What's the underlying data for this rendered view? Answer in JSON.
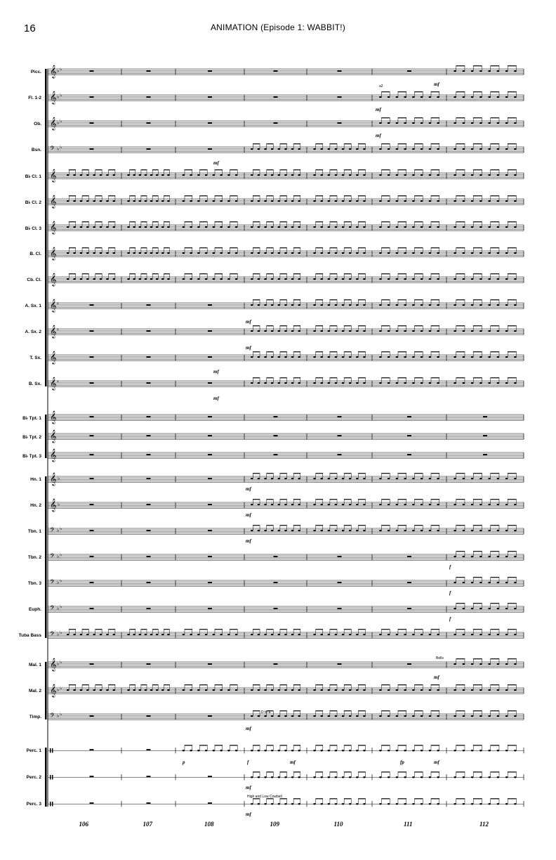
{
  "page": {
    "number": "16",
    "title": "ANIMATION (Episode 1: WABBIT!)"
  },
  "instruments": [
    {
      "name": "Picc.",
      "clef": "treble",
      "key": "flat2",
      "start": 6
    },
    {
      "name": "Fl. 1-2",
      "clef": "treble",
      "key": "flat2",
      "start": 5
    },
    {
      "name": "Ob.",
      "clef": "treble",
      "key": "flat2",
      "start": 5
    },
    {
      "name": "Bsn.",
      "clef": "bass",
      "key": "flat2",
      "start": 3
    },
    {
      "name": "B♭ Cl. 1",
      "clef": "treble",
      "key": "none",
      "start": 0
    },
    {
      "name": "B♭ Cl. 2",
      "clef": "treble",
      "key": "none",
      "start": 0
    },
    {
      "name": "B♭ Cl. 3",
      "clef": "treble",
      "key": "none",
      "start": 0
    },
    {
      "name": "B. Cl.",
      "clef": "treble",
      "key": "none",
      "start": 0
    },
    {
      "name": "Cb. Cl.",
      "clef": "treble",
      "key": "none",
      "start": 0
    },
    {
      "name": "A. Sx. 1",
      "clef": "treble",
      "key": "sharp1",
      "start": 3
    },
    {
      "name": "A. Sx. 2",
      "clef": "treble",
      "key": "sharp1",
      "start": 3
    },
    {
      "name": "T. Sx.",
      "clef": "treble",
      "key": "none",
      "start": 3
    },
    {
      "name": "B. Sx.",
      "clef": "treble",
      "key": "sharp1",
      "start": 3
    },
    {
      "name": "B♭ Tpt. 1",
      "clef": "treble",
      "key": "none",
      "start": -1
    },
    {
      "name": "B♭ Tpt. 2",
      "clef": "treble",
      "key": "none",
      "start": -1
    },
    {
      "name": "B♭ Tpt. 3",
      "clef": "treble",
      "key": "none",
      "start": -1
    },
    {
      "name": "Hn. 1",
      "clef": "treble",
      "key": "flat1",
      "start": 3
    },
    {
      "name": "Hn. 2",
      "clef": "treble",
      "key": "flat1",
      "start": 3
    },
    {
      "name": "Tbn. 1",
      "clef": "bass",
      "key": "flat2",
      "start": 3
    },
    {
      "name": "Tbn. 2",
      "clef": "bass",
      "key": "flat2",
      "start": 6
    },
    {
      "name": "Tbn. 3",
      "clef": "bass",
      "key": "flat2",
      "start": 6
    },
    {
      "name": "Euph.",
      "clef": "bass",
      "key": "flat2",
      "start": 6
    },
    {
      "name": "Tuba Bass",
      "clef": "bass",
      "key": "flat2",
      "start": 0
    },
    {
      "name": "Mal. 1",
      "clef": "treble",
      "key": "flat2",
      "start": 6
    },
    {
      "name": "Mal. 2",
      "clef": "treble",
      "key": "flat2",
      "start": 0
    },
    {
      "name": "Timp.",
      "clef": "bass",
      "key": "flat2",
      "start": 3
    },
    {
      "name": "Perc. 1",
      "clef": "perc",
      "key": "none",
      "start": 2
    },
    {
      "name": "Perc. 2",
      "clef": "perc",
      "key": "none",
      "start": 3
    },
    {
      "name": "Perc. 3",
      "clef": "perc",
      "key": "none",
      "start": 3
    }
  ],
  "measures": [
    "106",
    "107",
    "108",
    "109",
    "110",
    "111",
    "112"
  ],
  "annotations": {
    "a2": "a2",
    "bells": "Bells",
    "timp_tuning": "D to E",
    "cowbell": "High and Low Cowbell"
  },
  "dynamics": {
    "mf": "mf",
    "f": "f",
    "p": "p",
    "fp": "fp"
  }
}
